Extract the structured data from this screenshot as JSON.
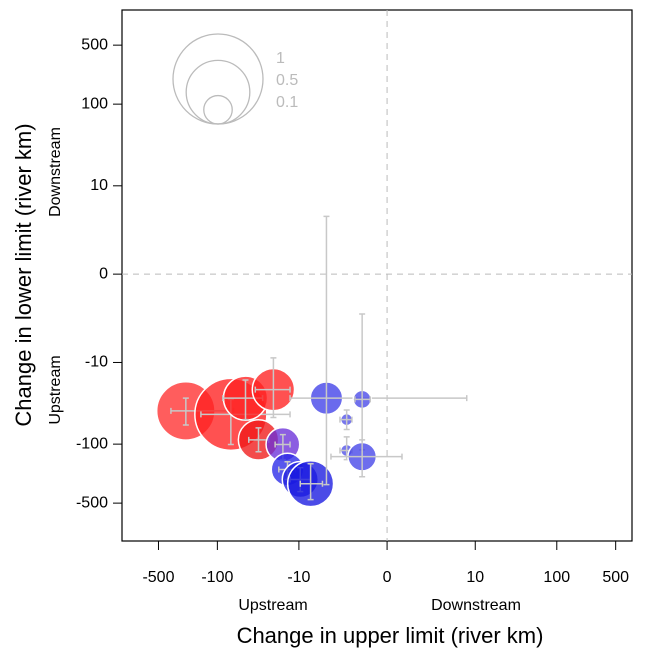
{
  "chart_data": {
    "type": "scatter",
    "x_label": "Change in upper limit (river km)",
    "y_label": "Change in lower limit (river km)",
    "x_annotations": [
      "Upstream",
      "Downstream"
    ],
    "y_annotations": [
      "Upstream",
      "Downstream"
    ],
    "scale": "signed-log1p",
    "xlim": [
      -1350,
      780
    ],
    "ylim": [
      -1400,
      1300
    ],
    "xticks": [
      -500,
      -100,
      -10,
      0,
      10,
      100,
      500
    ],
    "yticks": [
      -500,
      -100,
      -10,
      0,
      10,
      100,
      500
    ],
    "vline": 0,
    "hline": 0,
    "x": [
      -237,
      -69,
      -46,
      -21,
      -32,
      -16,
      -14,
      -9.6,
      -7,
      -4.2,
      -0.97,
      -2,
      -2,
      -0.97
    ],
    "y": [
      -40,
      -44,
      -28,
      -22,
      -89,
      -101,
      -200,
      -263,
      -295,
      -28,
      -29,
      -51,
      -119,
      -141
    ],
    "sizes": [
      0.42,
      0.64,
      0.24,
      0.22,
      0.2,
      0.14,
      0.13,
      0.16,
      0.26,
      0.13,
      0.04,
      0.018,
      0.018,
      0.1
    ],
    "colors": [
      "#ff3030",
      "#ff2020",
      "#ff2020",
      "#ff2020",
      "#f01818",
      "#6a30d8",
      "#2828e8",
      "#2020e0",
      "#1818e0",
      "#4040e8",
      "#4848e8",
      "#5050e8",
      "#5050e8",
      "#4444e8"
    ],
    "xlo": [
      -356,
      -157,
      -86,
      -35,
      -42,
      -20,
      -18,
      -13,
      -9.6,
      -13,
      -1.4,
      -2.6,
      -2.6,
      -3.6
    ],
    "xhi": [
      -64,
      -13,
      -28.5,
      -13,
      -24,
      -13,
      -11,
      -7,
      -4.8,
      7.73,
      -0.58,
      -1.6,
      -1.6,
      0.5
    ],
    "ylo": [
      -59,
      -101,
      -51,
      -48,
      -123,
      -153,
      -263,
      -366,
      -455,
      -302,
      -117,
      -67,
      -153,
      -244
    ],
    "yhi": [
      -28,
      -29,
      -16.7,
      -8.7,
      -64,
      -77,
      -162,
      -190,
      -171,
      3.8,
      -1.95,
      -39,
      -82,
      -89
    ],
    "size_legend": [
      1,
      0.5,
      0.1
    ],
    "errorbar_color": "#c8c8c8",
    "legend_color": "#bbbbbb"
  }
}
